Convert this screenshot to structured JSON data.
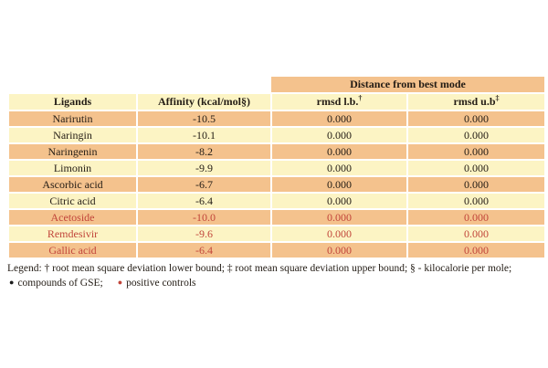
{
  "table": {
    "span_header": "Distance from best mode",
    "col_ligands": "Ligands",
    "col_affinity": "Affinity (kcal/mol§)",
    "col_rmsd_lb": {
      "base": "rmsd l.b.",
      "sup": "†"
    },
    "col_rmsd_ub": {
      "base": "rmsd u.b",
      "sup": "‡"
    },
    "rows": [
      {
        "ligand": "Narirutin",
        "affinity": "-10.5",
        "rmsd_lb": "0.000",
        "rmsd_ub": "0.000",
        "group": "gse"
      },
      {
        "ligand": "Naringin",
        "affinity": "-10.1",
        "rmsd_lb": "0.000",
        "rmsd_ub": "0.000",
        "group": "gse"
      },
      {
        "ligand": "Naringenin",
        "affinity": "-8.2",
        "rmsd_lb": "0.000",
        "rmsd_ub": "0.000",
        "group": "gse"
      },
      {
        "ligand": "Limonin",
        "affinity": "-9.9",
        "rmsd_lb": "0.000",
        "rmsd_ub": "0.000",
        "group": "gse"
      },
      {
        "ligand": "Ascorbic acid",
        "affinity": "-6.7",
        "rmsd_lb": "0.000",
        "rmsd_ub": "0.000",
        "group": "gse"
      },
      {
        "ligand": "Citric acid",
        "affinity": "-6.4",
        "rmsd_lb": "0.000",
        "rmsd_ub": "0.000",
        "group": "gse"
      },
      {
        "ligand": "Acetoside",
        "affinity": "-10.0",
        "rmsd_lb": "0.000",
        "rmsd_ub": "0.000",
        "group": "positive-control"
      },
      {
        "ligand": "Remdesivir",
        "affinity": "-9.6",
        "rmsd_lb": "0.000",
        "rmsd_ub": "0.000",
        "group": "positive-control"
      },
      {
        "ligand": "Gallic acid",
        "affinity": "-6.4",
        "rmsd_lb": "0.000",
        "rmsd_ub": "0.000",
        "group": "positive-control"
      }
    ]
  },
  "legend": {
    "line1": "Legend: † root mean square deviation lower bound; ‡ root mean square deviation upper bound; § - kilocalorie per mole;",
    "bullet_glyph": "●",
    "item_gse": "compounds of GSE;",
    "item_controls": "positive controls"
  },
  "colors": {
    "row_orange": "#F4C28D",
    "row_yellow": "#FCF4C4",
    "control_text": "#C1453A",
    "ink": "#231C15"
  }
}
